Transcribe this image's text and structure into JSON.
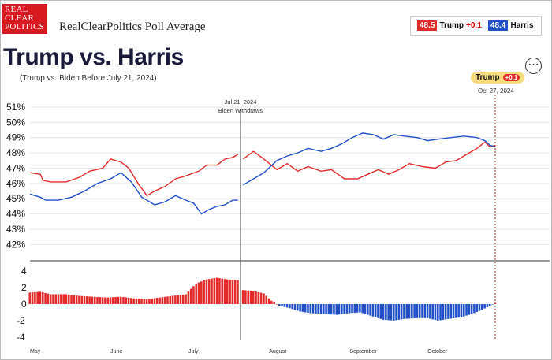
{
  "brand": {
    "logo_lines": [
      "REAL",
      "CLEAR",
      "POLITICS"
    ],
    "title": "RealClearPolitics Poll Average"
  },
  "legend": {
    "trump": {
      "value": "48.5",
      "name": "Trump",
      "change": "+0.1"
    },
    "harris": {
      "value": "48.4",
      "name": "Harris"
    }
  },
  "header": {
    "title": "Trump vs. Harris",
    "subtitle": "(Trump vs. Biden Before July 21, 2024)"
  },
  "badge": {
    "leader": "Trump",
    "delta": "+0.1",
    "date": "Oct 27, 2024"
  },
  "event": {
    "date": "Jul 21, 2024",
    "label": "Biden Withdraws",
    "date_value": "2024-07-21"
  },
  "colors": {
    "trump": "#e32b2b",
    "harris": "#2250c8"
  },
  "chart_data": {
    "type": "line",
    "x_range": [
      "2024-05-01",
      "2024-10-27"
    ],
    "yticks": [
      "51%",
      "50%",
      "49%",
      "48%",
      "47%",
      "46%",
      "45%",
      "44%",
      "43%",
      "42%"
    ],
    "ylim": [
      41.5,
      51
    ],
    "months": [
      "May",
      "June",
      "July",
      "August",
      "September",
      "October"
    ],
    "month_dates": [
      "2024-05-01",
      "2024-06-01",
      "2024-07-01",
      "2024-08-01",
      "2024-09-01",
      "2024-10-01"
    ],
    "series": [
      {
        "name": "Trump",
        "points": [
          [
            "2024-05-01",
            46.7
          ],
          [
            "2024-05-05",
            46.6
          ],
          [
            "2024-05-06",
            46.2
          ],
          [
            "2024-05-09",
            46.1
          ],
          [
            "2024-05-15",
            46.1
          ],
          [
            "2024-05-20",
            46.4
          ],
          [
            "2024-05-24",
            46.8
          ],
          [
            "2024-05-29",
            47.0
          ],
          [
            "2024-06-01",
            47.6
          ],
          [
            "2024-06-05",
            47.4
          ],
          [
            "2024-06-08",
            47.0
          ],
          [
            "2024-06-12",
            45.9
          ],
          [
            "2024-06-15",
            45.2
          ],
          [
            "2024-06-18",
            45.5
          ],
          [
            "2024-06-22",
            45.8
          ],
          [
            "2024-06-26",
            46.3
          ],
          [
            "2024-06-30",
            46.5
          ],
          [
            "2024-07-05",
            46.8
          ],
          [
            "2024-07-08",
            47.2
          ],
          [
            "2024-07-12",
            47.2
          ],
          [
            "2024-07-15",
            47.6
          ],
          [
            "2024-07-18",
            47.7
          ],
          [
            "2024-07-20",
            47.9
          ],
          null,
          [
            "2024-07-22",
            47.6
          ],
          [
            "2024-07-26",
            48.1
          ],
          [
            "2024-07-30",
            47.6
          ],
          [
            "2024-08-04",
            46.9
          ],
          [
            "2024-08-08",
            47.3
          ],
          [
            "2024-08-12",
            46.8
          ],
          [
            "2024-08-16",
            47.1
          ],
          [
            "2024-08-21",
            46.8
          ],
          [
            "2024-08-25",
            46.9
          ],
          [
            "2024-08-30",
            46.3
          ],
          [
            "2024-09-04",
            46.3
          ],
          [
            "2024-09-08",
            46.6
          ],
          [
            "2024-09-12",
            46.9
          ],
          [
            "2024-09-16",
            46.6
          ],
          [
            "2024-09-20",
            46.9
          ],
          [
            "2024-09-24",
            47.3
          ],
          [
            "2024-09-29",
            47.1
          ],
          [
            "2024-10-04",
            47.0
          ],
          [
            "2024-10-08",
            47.4
          ],
          [
            "2024-10-12",
            47.5
          ],
          [
            "2024-10-16",
            47.9
          ],
          [
            "2024-10-20",
            48.3
          ],
          [
            "2024-10-23",
            48.7
          ],
          [
            "2024-10-25",
            48.4
          ],
          [
            "2024-10-27",
            48.5
          ]
        ]
      },
      {
        "name": "Harris",
        "points": [
          [
            "2024-05-01",
            45.3
          ],
          [
            "2024-05-05",
            45.1
          ],
          [
            "2024-05-07",
            44.9
          ],
          [
            "2024-05-12",
            44.9
          ],
          [
            "2024-05-17",
            45.1
          ],
          [
            "2024-05-22",
            45.5
          ],
          [
            "2024-05-27",
            46.0
          ],
          [
            "2024-06-01",
            46.3
          ],
          [
            "2024-06-05",
            46.7
          ],
          [
            "2024-06-09",
            46.1
          ],
          [
            "2024-06-13",
            45.1
          ],
          [
            "2024-06-18",
            44.6
          ],
          [
            "2024-06-22",
            44.8
          ],
          [
            "2024-06-26",
            45.2
          ],
          [
            "2024-06-30",
            44.9
          ],
          [
            "2024-07-03",
            44.7
          ],
          [
            "2024-07-06",
            44.0
          ],
          [
            "2024-07-09",
            44.3
          ],
          [
            "2024-07-12",
            44.5
          ],
          [
            "2024-07-15",
            44.6
          ],
          [
            "2024-07-18",
            44.9
          ],
          [
            "2024-07-20",
            44.9
          ],
          null,
          [
            "2024-07-22",
            45.9
          ],
          [
            "2024-07-26",
            46.3
          ],
          [
            "2024-07-30",
            46.7
          ],
          [
            "2024-08-04",
            47.5
          ],
          [
            "2024-08-08",
            47.8
          ],
          [
            "2024-08-12",
            48.0
          ],
          [
            "2024-08-16",
            48.3
          ],
          [
            "2024-08-21",
            48.1
          ],
          [
            "2024-08-25",
            48.3
          ],
          [
            "2024-08-29",
            48.6
          ],
          [
            "2024-09-02",
            49.0
          ],
          [
            "2024-09-06",
            49.3
          ],
          [
            "2024-09-10",
            49.2
          ],
          [
            "2024-09-14",
            48.9
          ],
          [
            "2024-09-18",
            49.2
          ],
          [
            "2024-09-22",
            49.1
          ],
          [
            "2024-09-27",
            49.0
          ],
          [
            "2024-10-01",
            48.8
          ],
          [
            "2024-10-05",
            48.9
          ],
          [
            "2024-10-10",
            49.0
          ],
          [
            "2024-10-15",
            49.1
          ],
          [
            "2024-10-20",
            49.0
          ],
          [
            "2024-10-23",
            48.8
          ],
          [
            "2024-10-25",
            48.5
          ],
          [
            "2024-10-27",
            48.4
          ]
        ]
      }
    ],
    "spread": {
      "yticks": [
        "4",
        "2",
        "0",
        "-2",
        "-4"
      ],
      "ylim": [
        -4.4,
        4.4
      ],
      "points": [
        [
          "2024-05-01",
          1.4
        ],
        [
          "2024-05-05",
          1.5
        ],
        [
          "2024-05-09",
          1.2
        ],
        [
          "2024-05-15",
          1.2
        ],
        [
          "2024-05-20",
          1.0
        ],
        [
          "2024-05-25",
          0.9
        ],
        [
          "2024-05-31",
          0.8
        ],
        [
          "2024-06-05",
          0.9
        ],
        [
          "2024-06-10",
          0.7
        ],
        [
          "2024-06-15",
          0.6
        ],
        [
          "2024-06-20",
          0.8
        ],
        [
          "2024-06-25",
          1.0
        ],
        [
          "2024-06-30",
          1.2
        ],
        [
          "2024-07-04",
          2.5
        ],
        [
          "2024-07-08",
          3.0
        ],
        [
          "2024-07-12",
          3.2
        ],
        [
          "2024-07-16",
          3.0
        ],
        [
          "2024-07-20",
          2.9
        ],
        [
          "2024-07-22",
          1.7
        ],
        [
          "2024-07-26",
          1.6
        ],
        [
          "2024-07-30",
          1.3
        ],
        [
          "2024-08-02",
          0.4
        ],
        [
          "2024-08-05",
          -0.2
        ],
        [
          "2024-08-09",
          -0.5
        ],
        [
          "2024-08-13",
          -0.9
        ],
        [
          "2024-08-17",
          -1.1
        ],
        [
          "2024-08-22",
          -1.2
        ],
        [
          "2024-08-27",
          -1.3
        ],
        [
          "2024-09-01",
          -1.1
        ],
        [
          "2024-09-05",
          -1.0
        ],
        [
          "2024-09-10",
          -1.5
        ],
        [
          "2024-09-14",
          -1.9
        ],
        [
          "2024-09-18",
          -2.0
        ],
        [
          "2024-09-22",
          -1.8
        ],
        [
          "2024-09-27",
          -1.7
        ],
        [
          "2024-10-01",
          -1.7
        ],
        [
          "2024-10-05",
          -2.0
        ],
        [
          "2024-10-09",
          -1.8
        ],
        [
          "2024-10-14",
          -1.6
        ],
        [
          "2024-10-18",
          -1.2
        ],
        [
          "2024-10-22",
          -0.7
        ],
        [
          "2024-10-25",
          -0.2
        ],
        [
          "2024-10-27",
          0.1
        ]
      ]
    }
  }
}
